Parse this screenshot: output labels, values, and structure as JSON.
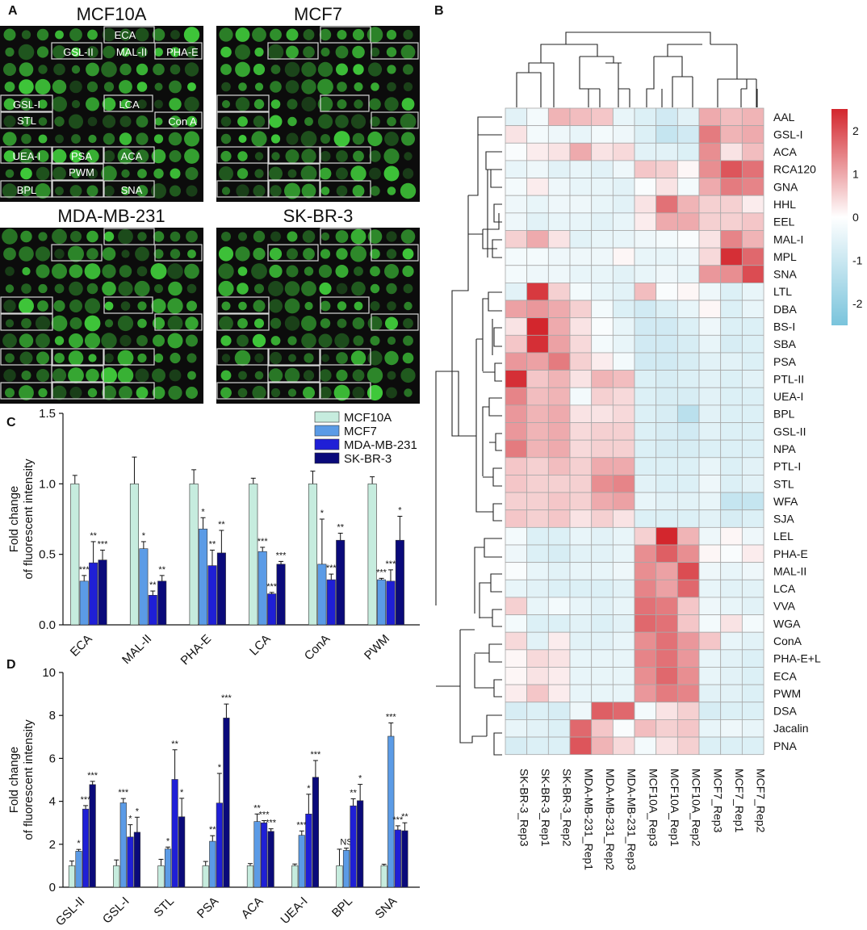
{
  "panels": {
    "a": "A",
    "b": "B",
    "c": "C",
    "d": "D"
  },
  "microarray": {
    "titles": [
      "MCF10A",
      "MCF7",
      "MDA-MB-231",
      "SK-BR-3"
    ],
    "box_labels": [
      "ECA",
      "GSL-II",
      "MAL-II",
      "PHA-E",
      "GSL-I",
      "LCA",
      "STL",
      "Con A",
      "UEA-I",
      "PSA",
      "ACA",
      "PWM",
      "BPL",
      "SNA"
    ]
  },
  "colors": {
    "MCF10A": "#c6ecde",
    "MCF7": "#5b9be6",
    "MDA-MB-231": "#1f1fd6",
    "SK-BR-3": "#0a0a7a",
    "hm_high": "#d3262d",
    "hm_mid": "#ffffff",
    "hm_low": "#7ac4dc",
    "array_spot": "#3fc83a"
  },
  "chart_data": [
    {
      "type": "bar",
      "panel": "C",
      "ylabel": "Fold change of fluorescent intensity",
      "ylim": [
        0,
        1.5
      ],
      "yticks": [
        "0.0",
        "0.5",
        "1.0",
        "1.5"
      ],
      "categories": [
        "ECA",
        "MAL-II",
        "PHA-E",
        "LCA",
        "ConA",
        "PWM"
      ],
      "series": [
        {
          "name": "MCF10A",
          "values": [
            1.0,
            1.0,
            1.0,
            1.0,
            1.0,
            1.0
          ],
          "errors": [
            0.06,
            0.19,
            0.1,
            0.04,
            0.09,
            0.05
          ],
          "sig": [
            "",
            "",
            "",
            "",
            "",
            ""
          ]
        },
        {
          "name": "MCF7",
          "values": [
            0.31,
            0.54,
            0.68,
            0.52,
            0.43,
            0.32
          ],
          "errors": [
            0.04,
            0.05,
            0.08,
            0.03,
            0.32,
            0.01
          ],
          "sig": [
            "***",
            "*",
            "*",
            "***",
            "*",
            "***"
          ]
        },
        {
          "name": "MDA-MB-231",
          "values": [
            0.44,
            0.21,
            0.42,
            0.22,
            0.32,
            0.31
          ],
          "errors": [
            0.15,
            0.03,
            0.11,
            0.01,
            0.04,
            0.08
          ],
          "sig": [
            "**",
            "**",
            "**",
            "***",
            "***",
            "***"
          ]
        },
        {
          "name": "SK-BR-3",
          "values": [
            0.46,
            0.31,
            0.51,
            0.43,
            0.6,
            0.6
          ],
          "errors": [
            0.07,
            0.04,
            0.16,
            0.02,
            0.05,
            0.17
          ],
          "sig": [
            "***",
            "**",
            "**",
            "***",
            "**",
            "*"
          ]
        }
      ]
    },
    {
      "type": "bar",
      "panel": "D",
      "ylabel": "Fold change of fluorescent intensity",
      "ylim": [
        0,
        10
      ],
      "yticks": [
        "0",
        "2",
        "4",
        "6",
        "8",
        "10"
      ],
      "categories": [
        "GSL-II",
        "GSL-I",
        "STL",
        "PSA",
        "ACA",
        "UEA-I",
        "BPL",
        "SNA"
      ],
      "series": [
        {
          "name": "MCF10A",
          "values": [
            1.0,
            1.0,
            1.0,
            1.0,
            1.0,
            1.0,
            1.0,
            1.0
          ],
          "errors": [
            0.22,
            0.27,
            0.3,
            0.2,
            0.1,
            0.08,
            0.77,
            0.07
          ],
          "sig": [
            "",
            "",
            "",
            "",
            "",
            "",
            "",
            ""
          ]
        },
        {
          "name": "MCF7",
          "values": [
            1.68,
            3.93,
            1.78,
            2.14,
            3.06,
            2.42,
            1.72,
            7.03
          ],
          "errors": [
            0.08,
            0.2,
            0.09,
            0.26,
            0.35,
            0.2,
            0.1,
            0.62
          ],
          "sig": [
            "*",
            "***",
            "*",
            "**",
            "**",
            "***",
            "NS",
            "***"
          ]
        },
        {
          "name": "MDA-MB-231",
          "values": [
            3.64,
            2.34,
            5.02,
            3.92,
            3.0,
            3.41,
            3.79,
            2.67
          ],
          "errors": [
            0.16,
            0.57,
            1.38,
            1.38,
            0.1,
            0.92,
            0.33,
            0.19
          ],
          "sig": [
            "***",
            "*",
            "**",
            "*",
            "***",
            "*",
            "**",
            "***"
          ]
        },
        {
          "name": "SK-BR-3",
          "values": [
            4.78,
            2.56,
            3.28,
            7.88,
            2.6,
            5.12,
            4.03,
            2.63
          ],
          "errors": [
            0.15,
            0.7,
            0.86,
            0.65,
            0.12,
            0.78,
            0.76,
            0.37
          ],
          "sig": [
            "***",
            "*",
            "*",
            "***",
            "***",
            "***",
            "*",
            "**"
          ]
        }
      ]
    },
    {
      "type": "heatmap",
      "panel": "B",
      "scale": [
        -2.5,
        2.5
      ],
      "legend_ticks": [
        "2",
        "1",
        "0",
        "-1",
        "-2"
      ],
      "columns": [
        "SK-BR-3_Rep3",
        "SK-BR-3_Rep1",
        "SK-BR-3_Rep2",
        "MDA-MB-231_Rep1",
        "MDA-MB-231_Rep2",
        "MDA-MB-231_Rep3",
        "MCF10A_Rep3",
        "MCF10A_Rep1",
        "MCF10A_Rep2",
        "MCF7_Rep3",
        "MCF7_Rep1",
        "MCF7_Rep2"
      ],
      "rows": [
        "AAL",
        "GSL-I",
        "ACA",
        "RCA120",
        "GNA",
        "HHL",
        "EEL",
        "MAL-I",
        "MPL",
        "SNA",
        "LTL",
        "DBA",
        "BS-I",
        "SBA",
        "PSA",
        "PTL-II",
        "UEA-I",
        "BPL",
        "GSL-II",
        "NPA",
        "PTL-I",
        "STL",
        "WFA",
        "SJA",
        "LEL",
        "PHA-E",
        "MAL-II",
        "LCA",
        "VVA",
        "WGA",
        "ConA",
        "PHA-E+L",
        "ECA",
        "PWM",
        "DSA",
        "Jacalin",
        "PNA"
      ],
      "values": [
        [
          -0.5,
          -0.2,
          0.8,
          0.7,
          0.6,
          -0.4,
          -0.6,
          -0.8,
          -0.5,
          0.9,
          0.7,
          0.8
        ],
        [
          0.3,
          -0.2,
          -0.3,
          -0.4,
          -0.2,
          -0.3,
          -0.6,
          -1.0,
          -0.8,
          1.4,
          0.8,
          0.9
        ],
        [
          -0.1,
          0.2,
          0.3,
          0.9,
          0.3,
          0.4,
          -0.5,
          -0.5,
          -0.6,
          1.2,
          0.3,
          0.7
        ],
        [
          -0.4,
          -0.3,
          -0.5,
          -0.4,
          -0.5,
          -0.3,
          0.6,
          0.5,
          0.1,
          1.2,
          1.8,
          1.5
        ],
        [
          -0.2,
          0.2,
          -0.3,
          -0.4,
          -0.4,
          -0.5,
          -0.1,
          0.3,
          -0.2,
          0.9,
          1.4,
          1.3
        ],
        [
          -0.3,
          -0.4,
          -0.3,
          -0.3,
          -0.4,
          -0.5,
          0.3,
          1.5,
          0.8,
          0.5,
          0.5,
          0.2
        ],
        [
          -0.3,
          -0.5,
          -0.4,
          -0.4,
          -0.5,
          -0.4,
          0.2,
          0.9,
          0.9,
          0.5,
          0.5,
          0.6
        ],
        [
          0.5,
          0.9,
          0.3,
          -0.5,
          -0.4,
          -0.4,
          -0.3,
          -0.2,
          -0.1,
          0.3,
          1.3,
          0.8
        ],
        [
          -0.2,
          -0.2,
          -0.3,
          -0.3,
          -0.3,
          0.1,
          -0.4,
          -0.4,
          -0.3,
          0.4,
          2.2,
          1.6
        ],
        [
          -0.2,
          -0.3,
          -0.3,
          -0.4,
          -0.4,
          -0.5,
          -0.4,
          -0.3,
          -0.4,
          1.1,
          1.2,
          1.9
        ],
        [
          -0.5,
          2.1,
          0.5,
          -0.2,
          -0.4,
          -0.5,
          0.7,
          -0.1,
          0.1,
          -0.3,
          -0.6,
          -0.4
        ],
        [
          1.0,
          1.1,
          0.9,
          0.5,
          -0.2,
          -0.6,
          -0.8,
          -0.6,
          -0.4,
          0.1,
          -0.6,
          -0.4
        ],
        [
          0.3,
          2.3,
          0.9,
          0.3,
          -0.1,
          -0.4,
          -0.8,
          -0.8,
          -0.6,
          -0.3,
          -0.6,
          -0.6
        ],
        [
          0.6,
          2.2,
          1.0,
          0.4,
          -0.2,
          -0.4,
          -0.8,
          -0.8,
          -0.7,
          -0.4,
          -0.7,
          -0.6
        ],
        [
          1.1,
          1.0,
          1.4,
          0.5,
          0.2,
          -0.2,
          -0.8,
          -0.8,
          -0.7,
          -0.5,
          -0.5,
          -0.6
        ],
        [
          2.2,
          0.6,
          0.8,
          0.3,
          0.8,
          0.7,
          -0.6,
          -0.7,
          -0.6,
          -0.5,
          -0.6,
          -0.5
        ],
        [
          1.3,
          0.7,
          0.8,
          -0.2,
          0.5,
          0.4,
          -0.6,
          -0.7,
          -0.7,
          -0.5,
          -0.6,
          -0.6
        ],
        [
          1.1,
          0.8,
          0.9,
          0.3,
          0.3,
          0.4,
          -0.6,
          -0.7,
          -1.2,
          -0.5,
          -0.6,
          -0.6
        ],
        [
          1.1,
          0.8,
          0.9,
          0.4,
          0.5,
          0.5,
          -0.6,
          -0.7,
          -0.8,
          -0.5,
          -0.6,
          -0.6
        ],
        [
          1.4,
          0.8,
          0.9,
          0.4,
          0.5,
          0.5,
          -0.6,
          -0.7,
          -0.7,
          -0.6,
          -0.6,
          -0.6
        ],
        [
          0.6,
          0.5,
          0.7,
          0.5,
          0.9,
          0.9,
          -0.6,
          -0.6,
          -0.6,
          -0.4,
          -0.6,
          -0.5
        ],
        [
          0.6,
          0.5,
          0.5,
          0.5,
          1.2,
          1.3,
          -0.5,
          -0.6,
          -0.6,
          -0.3,
          -0.6,
          -0.5
        ],
        [
          0.5,
          0.5,
          0.6,
          0.5,
          0.9,
          1.0,
          -0.4,
          -0.5,
          -0.5,
          -0.4,
          -1.0,
          -1.0
        ],
        [
          0.6,
          0.5,
          0.6,
          0.3,
          0.5,
          0.3,
          -0.6,
          -0.6,
          -0.6,
          -0.5,
          -0.7,
          -0.6
        ],
        [
          -0.2,
          -0.6,
          -0.6,
          -0.4,
          -0.5,
          -0.4,
          0.5,
          2.3,
          0.8,
          -0.3,
          0.1,
          -0.3
        ],
        [
          -0.3,
          -0.6,
          -0.7,
          -0.5,
          -0.5,
          -0.4,
          1.2,
          1.7,
          1.2,
          0.1,
          -0.1,
          0.2
        ],
        [
          -0.1,
          -0.4,
          -0.5,
          -0.4,
          -0.4,
          -0.3,
          1.2,
          1.0,
          1.9,
          -0.3,
          -0.4,
          -0.3
        ],
        [
          -0.4,
          -0.5,
          -0.6,
          -0.6,
          -0.6,
          -0.5,
          1.3,
          1.0,
          1.6,
          -0.4,
          -0.5,
          -0.5
        ],
        [
          0.5,
          -0.4,
          -0.2,
          -0.4,
          -0.5,
          -0.4,
          1.5,
          1.4,
          0.6,
          -0.3,
          -0.4,
          -0.5
        ],
        [
          -0.2,
          -0.6,
          -0.6,
          -0.5,
          -0.6,
          -0.5,
          1.6,
          1.5,
          0.6,
          -0.2,
          0.3,
          -0.2
        ],
        [
          0.4,
          -0.5,
          0.2,
          -0.5,
          -0.5,
          -0.4,
          1.2,
          1.5,
          1.1,
          0.6,
          -0.4,
          -0.5
        ],
        [
          0.1,
          0.4,
          0.3,
          -0.4,
          -0.4,
          -0.4,
          1.3,
          1.5,
          1.1,
          -0.4,
          -0.5,
          -0.6
        ],
        [
          0.1,
          0.3,
          0.2,
          -0.4,
          -0.4,
          -0.4,
          1.2,
          1.6,
          1.2,
          -0.4,
          -0.5,
          -0.6
        ],
        [
          0.2,
          0.6,
          0.2,
          -0.4,
          -0.4,
          -0.4,
          1.1,
          1.4,
          1.3,
          -0.5,
          -0.5,
          -0.6
        ],
        [
          -0.7,
          -0.6,
          -0.7,
          -0.3,
          1.7,
          1.6,
          -0.2,
          0.3,
          0.5,
          -0.7,
          -0.6,
          -0.6
        ],
        [
          -0.4,
          -0.5,
          -0.6,
          1.6,
          0.6,
          -0.1,
          0.7,
          0.5,
          0.6,
          -0.4,
          -0.3,
          -0.4
        ],
        [
          -0.7,
          -0.6,
          -0.6,
          1.8,
          0.8,
          0.4,
          -0.2,
          0.3,
          0.5,
          -0.6,
          -0.6,
          -0.6
        ]
      ]
    }
  ]
}
